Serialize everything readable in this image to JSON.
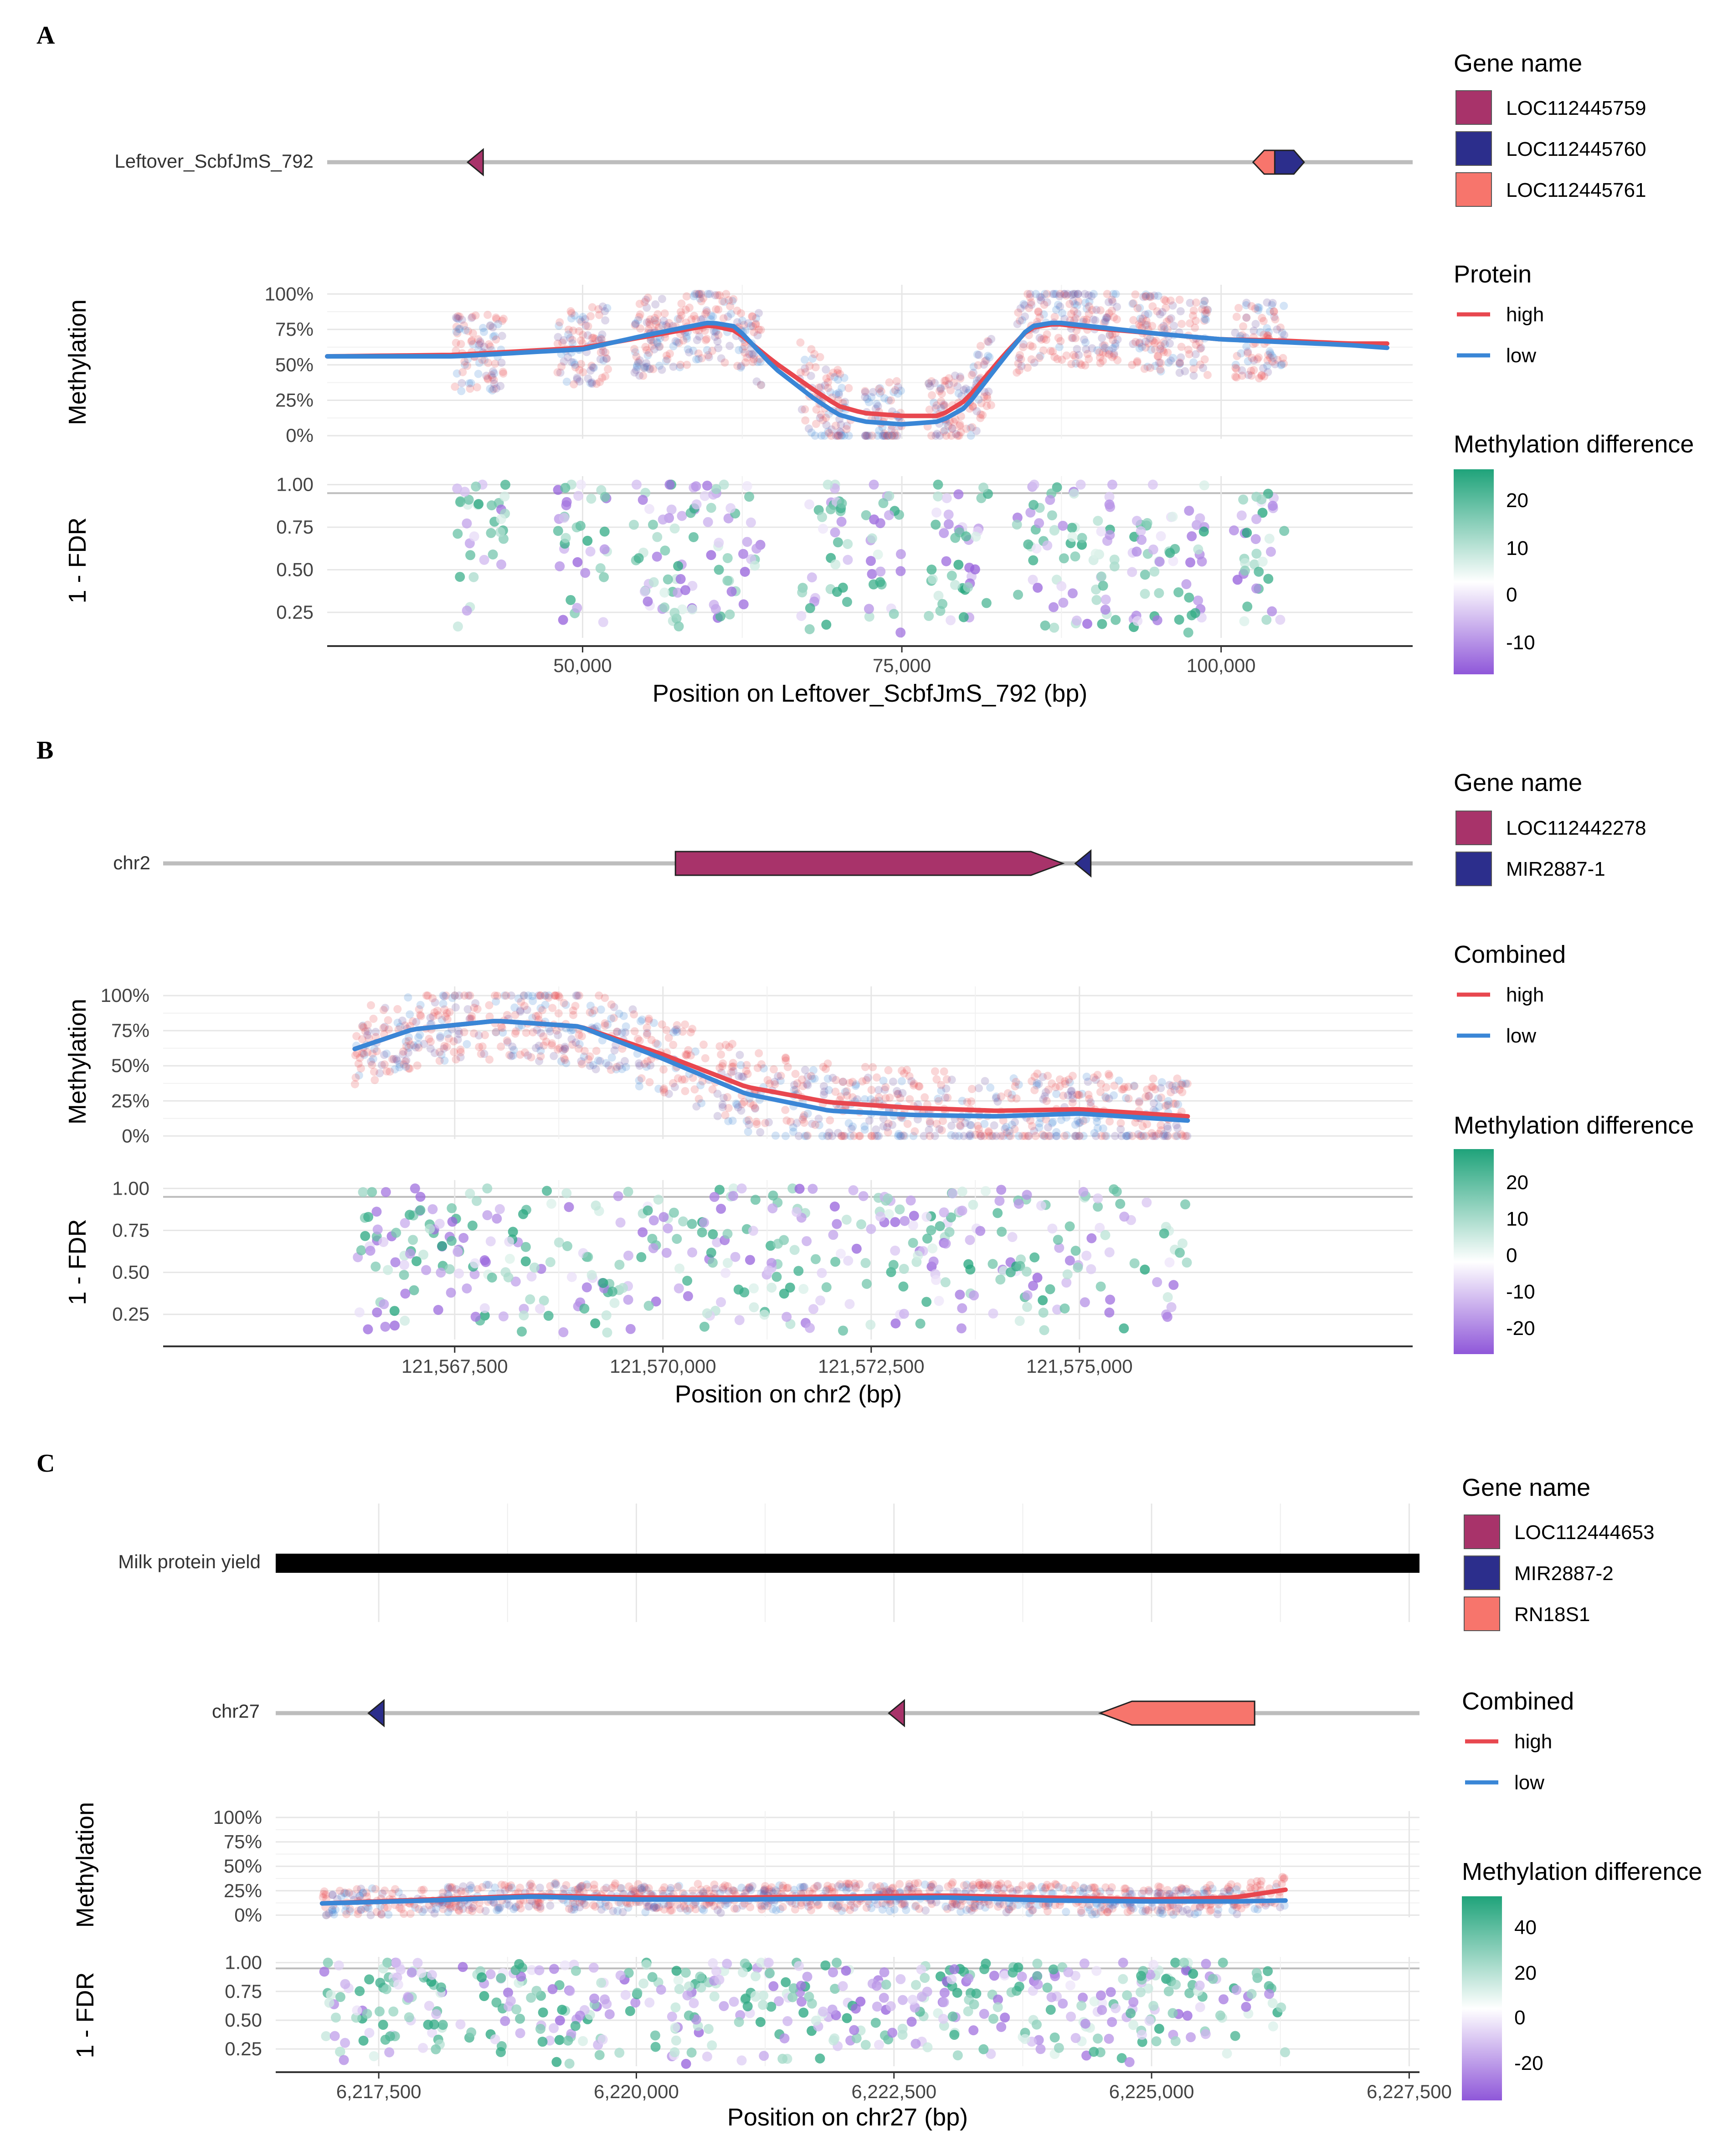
{
  "colors": {
    "high": "#e8474f",
    "low": "#3a86d6",
    "gene_magenta": "#a8336a",
    "gene_navy": "#2c2e8c",
    "gene_salmon": "#f7756c",
    "track_gray": "#bdbdbd",
    "diff_pos": "#1fa37a",
    "diff_neg": "#8f57d9"
  },
  "panels": [
    {
      "letter": "A",
      "track_label": "Leftover_ScbfJmS_792",
      "xlabel": "Position on Leftover_ScbfJmS_792 (bp)",
      "y1label": "Methylation",
      "y2label": "1 - FDR",
      "gene_legend_title": "Gene name",
      "genes": [
        {
          "name": "LOC112445759",
          "color": "#a8336a"
        },
        {
          "name": "LOC112445760",
          "color": "#2c2e8c"
        },
        {
          "name": "LOC112445761",
          "color": "#f7756c"
        }
      ],
      "group_legend_title": "Protein",
      "groups": [
        {
          "label": "high",
          "color": "#e8474f"
        },
        {
          "label": "low",
          "color": "#3a86d6"
        }
      ],
      "diff_legend_title": "Methylation difference",
      "diff_ticks": [
        "20",
        "10",
        "0",
        "-10"
      ]
    },
    {
      "letter": "B",
      "track_label": "chr2",
      "xlabel": "Position on chr2 (bp)",
      "y1label": "Methylation",
      "y2label": "1 - FDR",
      "gene_legend_title": "Gene name",
      "genes": [
        {
          "name": "LOC112442278",
          "color": "#a8336a"
        },
        {
          "name": "MIR2887-1",
          "color": "#2c2e8c"
        }
      ],
      "group_legend_title": "Combined",
      "groups": [
        {
          "label": "high",
          "color": "#e8474f"
        },
        {
          "label": "low",
          "color": "#3a86d6"
        }
      ],
      "diff_legend_title": "Methylation difference",
      "diff_ticks": [
        "20",
        "10",
        "0",
        "-10",
        "-20"
      ]
    },
    {
      "letter": "C",
      "qtl_label": "Milk protein yield",
      "track_label": "chr27",
      "xlabel": "Position on chr27 (bp)",
      "y1label": "Methylation",
      "y2label": "1 - FDR",
      "gene_legend_title": "Gene name",
      "genes": [
        {
          "name": "LOC112444653",
          "color": "#a8336a"
        },
        {
          "name": "MIR2887-2",
          "color": "#2c2e8c"
        },
        {
          "name": "RN18S1",
          "color": "#f7756c"
        }
      ],
      "group_legend_title": "Combined",
      "groups": [
        {
          "label": "high",
          "color": "#e8474f"
        },
        {
          "label": "low",
          "color": "#3a86d6"
        }
      ],
      "diff_legend_title": "Methylation difference",
      "diff_ticks": [
        "40",
        "20",
        "0",
        "-20"
      ]
    }
  ],
  "chart_data": [
    {
      "type": "scatter",
      "title": "A",
      "xlabel": "Position on Leftover_ScbfJmS_792 (bp)",
      "xlim": [
        30000,
        115000
      ],
      "x_ticks": [
        50000,
        75000,
        100000
      ],
      "x_tick_labels": [
        "50,000",
        "75,000",
        "100,000"
      ],
      "methylation": {
        "ylabel": "Methylation",
        "ylim": [
          0,
          100
        ],
        "y_tick_labels": [
          "0%",
          "25%",
          "50%",
          "75%",
          "100%"
        ],
        "clusters": [
          [
            40000,
            44000
          ],
          [
            48000,
            52000
          ],
          [
            54000,
            64000
          ],
          [
            67000,
            71000
          ],
          [
            72000,
            75000
          ],
          [
            77000,
            82000
          ],
          [
            84000,
            92000
          ],
          [
            93000,
            99000
          ],
          [
            101000,
            105000
          ]
        ],
        "series": [
          {
            "name": "high",
            "x": [
              30000,
              40000,
              50000,
              55000,
              60000,
              62000,
              65000,
              68000,
              70000,
              72000,
              75000,
              78000,
              80000,
              83000,
              85000,
              87000,
              90000,
              95000,
              100000,
              105000,
              110000,
              113000
            ],
            "y": [
              56,
              57,
              62,
              70,
              78,
              74,
              52,
              33,
              21,
              16,
              14,
              14,
              25,
              57,
              76,
              79,
              76,
              72,
              68,
              67,
              65,
              65
            ]
          },
          {
            "name": "low",
            "x": [
              30000,
              40000,
              50000,
              55000,
              60000,
              62000,
              65000,
              68000,
              70000,
              72000,
              75000,
              78000,
              80000,
              83000,
              85000,
              87000,
              90000,
              95000,
              100000,
              105000,
              110000,
              113000
            ],
            "y": [
              56,
              56,
              61,
              71,
              80,
              77,
              48,
              27,
              15,
              10,
              8,
              10,
              20,
              55,
              77,
              80,
              77,
              72,
              68,
              66,
              64,
              62
            ]
          }
        ]
      },
      "fdr": {
        "ylabel": "1 - FDR",
        "ylim": [
          0.1,
          1.05
        ],
        "y_tick_labels": [
          "0.25",
          "0.50",
          "0.75",
          "1.00"
        ],
        "threshold": 0.95
      },
      "genes": [
        {
          "name": "LOC112445759",
          "start": 41000,
          "end": 42500,
          "strand": "-"
        },
        {
          "name": "LOC112445761",
          "start": 102500,
          "end": 105000,
          "strand": "-"
        },
        {
          "name": "LOC112445760",
          "start": 104200,
          "end": 106500,
          "strand": "+"
        }
      ],
      "diff_range": [
        -15,
        25
      ]
    },
    {
      "type": "scatter",
      "title": "B",
      "xlabel": "Position on chr2 (bp)",
      "xlim": [
        121564000,
        121579000
      ],
      "x_ticks": [
        121567500,
        121570000,
        121572500,
        121575000
      ],
      "x_tick_labels": [
        "121,567,500",
        "121,570,000",
        "121,572,500",
        "121,575,000"
      ],
      "methylation": {
        "ylabel": "Methylation",
        "ylim": [
          0,
          100
        ],
        "y_tick_labels": [
          "0%",
          "25%",
          "50%",
          "75%",
          "100%"
        ],
        "clusters": [
          [
            121566300,
            121576300
          ]
        ],
        "series": [
          {
            "name": "high",
            "x": [
              121566300,
              121567000,
              121568000,
              121569000,
              121570000,
              121571000,
              121572000,
              121573000,
              121574000,
              121575000,
              121576300
            ],
            "y": [
              62,
              76,
              82,
              78,
              58,
              35,
              24,
              20,
              18,
              19,
              14
            ]
          },
          {
            "name": "low",
            "x": [
              121566300,
              121567000,
              121568000,
              121569000,
              121570000,
              121571000,
              121572000,
              121573000,
              121574000,
              121575000,
              121576300
            ],
            "y": [
              62,
              76,
              82,
              78,
              55,
              30,
              18,
              15,
              14,
              16,
              11
            ]
          }
        ]
      },
      "fdr": {
        "ylabel": "1 - FDR",
        "ylim": [
          0.1,
          1.05
        ],
        "y_tick_labels": [
          "0.25",
          "0.50",
          "0.75",
          "1.00"
        ],
        "threshold": 0.95
      },
      "genes": [
        {
          "name": "LOC112442278",
          "start": 121570150,
          "end": 121574800,
          "strand": "+"
        },
        {
          "name": "MIR2887-1",
          "start": 121574950,
          "end": 121575100,
          "strand": "-"
        }
      ],
      "diff_range": [
        -25,
        25
      ]
    },
    {
      "type": "scatter",
      "title": "C",
      "xlabel": "Position on chr27 (bp)",
      "xlim": [
        6216500,
        6227600
      ],
      "x_ticks": [
        6217500,
        6220000,
        6222500,
        6225000,
        6227500
      ],
      "x_tick_labels": [
        "6,217,500",
        "6,220,000",
        "6,222,500",
        "6,225,000",
        "6,227,500"
      ],
      "methylation": {
        "ylabel": "Methylation",
        "ylim": [
          0,
          100
        ],
        "y_tick_labels": [
          "0%",
          "25%",
          "50%",
          "75%",
          "100%"
        ],
        "clusters": [
          [
            6216950,
            6226300
          ]
        ],
        "series": [
          {
            "name": "high",
            "x": [
              6216950,
              6218000,
              6219000,
              6220000,
              6221000,
              6222000,
              6223000,
              6224000,
              6225000,
              6225800,
              6226300
            ],
            "y": [
              12,
              16,
              20,
              18,
              18,
              19,
              20,
              18,
              16,
              18,
              26
            ]
          },
          {
            "name": "low",
            "x": [
              6216950,
              6218000,
              6219000,
              6220000,
              6221000,
              6222000,
              6223000,
              6224000,
              6225000,
              6225800,
              6226300
            ],
            "y": [
              12,
              15,
              19,
              16,
              16,
              17,
              18,
              15,
              14,
              14,
              15
            ]
          }
        ]
      },
      "fdr": {
        "ylabel": "1 - FDR",
        "ylim": [
          0.1,
          1.05
        ],
        "y_tick_labels": [
          "0.25",
          "0.50",
          "0.75",
          "1.00"
        ],
        "threshold": 0.95
      },
      "qtl": {
        "label": "Milk protein yield",
        "start": 6216500,
        "end": 6227600
      },
      "genes": [
        {
          "name": "MIR2887-2",
          "start": 6217400,
          "end": 6217500,
          "strand": "-"
        },
        {
          "name": "LOC112444653",
          "start": 6222450,
          "end": 6222600,
          "strand": "-"
        },
        {
          "name": "RN18S1",
          "start": 6224500,
          "end": 6226000,
          "strand": "-"
        }
      ],
      "diff_range": [
        -30,
        50
      ]
    }
  ]
}
